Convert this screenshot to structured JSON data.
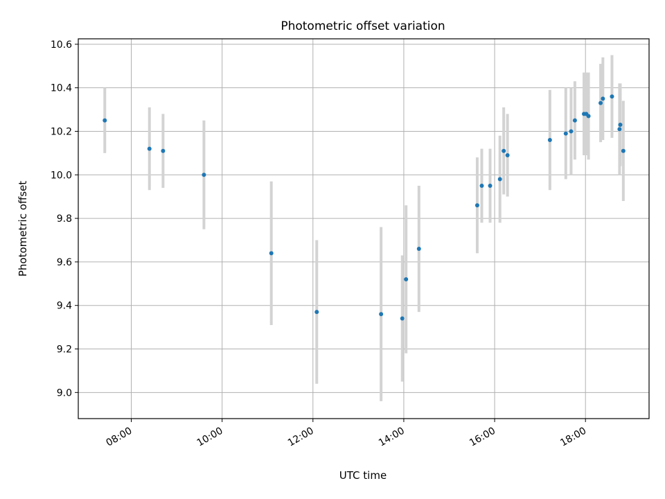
{
  "chart_data": {
    "type": "scatter",
    "title": "Photometric offset variation",
    "xlabel": "UTC time",
    "ylabel": "Photometric offset",
    "x_ticks": [
      "08:00",
      "10:00",
      "12:00",
      "14:00",
      "16:00",
      "18:00"
    ],
    "y_ticks": [
      "9.0",
      "9.2",
      "9.4",
      "9.6",
      "9.8",
      "10.0",
      "10.2",
      "10.4",
      "10.6"
    ],
    "xlim": [
      "06:50",
      "19:24"
    ],
    "ylim": [
      8.88,
      10.625
    ],
    "grid": true,
    "colors": {
      "marker": "#1f77b4",
      "errorbar": "#d3d3d3",
      "grid": "#b0b0b0"
    },
    "series": [
      {
        "points": [
          {
            "x": "07:25",
            "y": 10.25,
            "err": 0.15
          },
          {
            "x": "08:24",
            "y": 10.12,
            "err": 0.19
          },
          {
            "x": "08:42",
            "y": 10.11,
            "err": 0.17
          },
          {
            "x": "09:36",
            "y": 10.0,
            "err": 0.25
          },
          {
            "x": "11:05",
            "y": 9.64,
            "err": 0.33
          },
          {
            "x": "12:05",
            "y": 9.37,
            "err": 0.33
          },
          {
            "x": "13:30",
            "y": 9.36,
            "err": 0.4
          },
          {
            "x": "13:58",
            "y": 9.34,
            "err": 0.29
          },
          {
            "x": "14:03",
            "y": 9.52,
            "err": 0.34
          },
          {
            "x": "14:20",
            "y": 9.66,
            "err": 0.29
          },
          {
            "x": "15:37",
            "y": 9.86,
            "err": 0.22
          },
          {
            "x": "15:43",
            "y": 9.95,
            "err": 0.17
          },
          {
            "x": "15:54",
            "y": 9.95,
            "err": 0.17
          },
          {
            "x": "16:07",
            "y": 9.98,
            "err": 0.2
          },
          {
            "x": "16:12",
            "y": 10.11,
            "err": 0.2
          },
          {
            "x": "16:17",
            "y": 10.09,
            "err": 0.19
          },
          {
            "x": "17:13",
            "y": 10.16,
            "err": 0.23
          },
          {
            "x": "17:34",
            "y": 10.19,
            "err": 0.21
          },
          {
            "x": "17:41",
            "y": 10.2,
            "err": 0.2
          },
          {
            "x": "17:46",
            "y": 10.25,
            "err": 0.18
          },
          {
            "x": "17:58",
            "y": 10.28,
            "err": 0.19
          },
          {
            "x": "18:01",
            "y": 10.28,
            "err": 0.19
          },
          {
            "x": "18:04",
            "y": 10.27,
            "err": 0.2
          },
          {
            "x": "18:20",
            "y": 10.33,
            "err": 0.18
          },
          {
            "x": "18:23",
            "y": 10.35,
            "err": 0.19
          },
          {
            "x": "18:35",
            "y": 10.36,
            "err": 0.19
          },
          {
            "x": "18:45",
            "y": 10.21,
            "err": 0.21
          },
          {
            "x": "18:46",
            "y": 10.23,
            "err": 0.19
          },
          {
            "x": "18:50",
            "y": 10.11,
            "err": 0.23
          }
        ]
      }
    ]
  }
}
